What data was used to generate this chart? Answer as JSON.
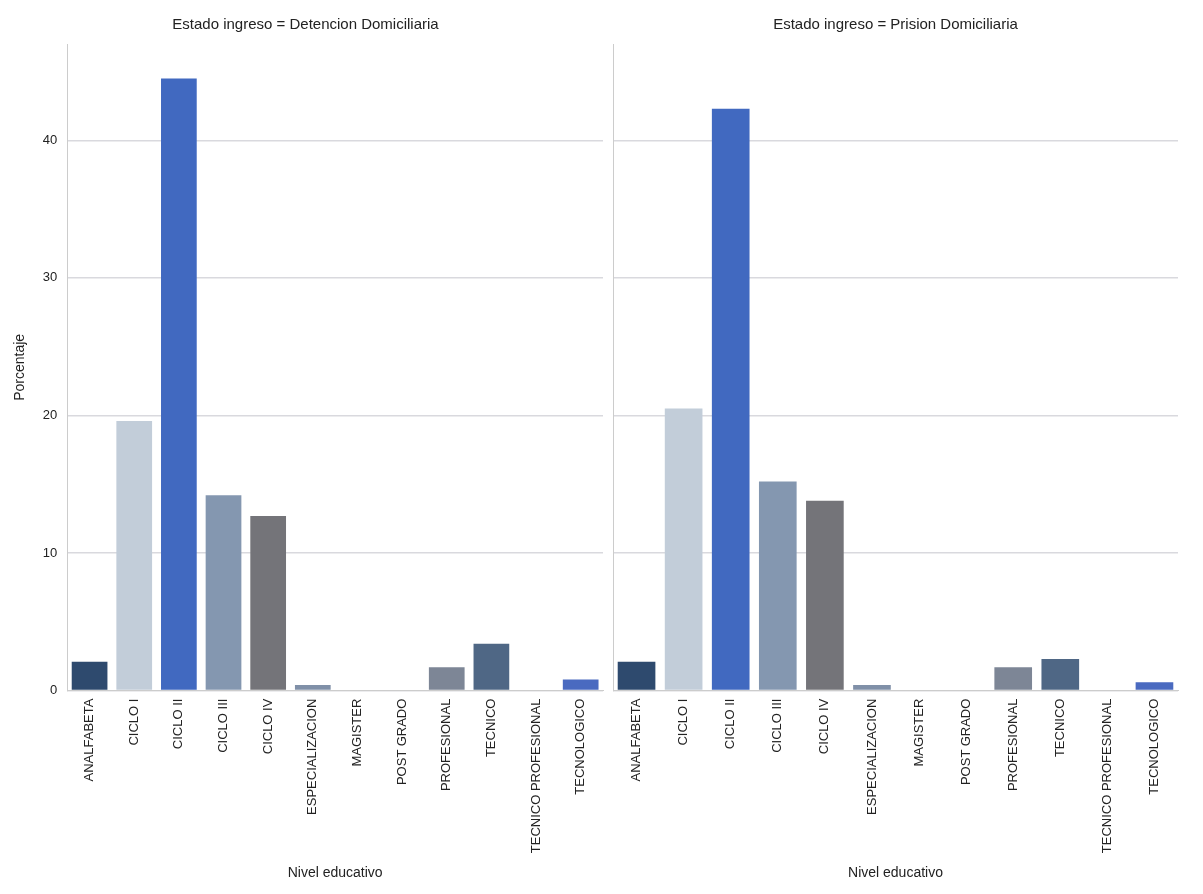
{
  "chart_data": [
    {
      "type": "bar",
      "title": "Estado ingreso = Detencion Domiciliaria",
      "xlabel": "Nivel educativo",
      "ylabel": "Porcentaje",
      "categories": [
        "ANALFABETA",
        "CICLO I",
        "CICLO II",
        "CICLO III",
        "CICLO IV",
        "ESPECIALIZACION",
        "MAGISTER",
        "POST GRADO",
        "PROFESIONAL",
        "TECNICO",
        "TECNICO PROFESIONAL",
        "TECNOLOGICO"
      ],
      "values": [
        2.1,
        19.6,
        44.5,
        14.2,
        12.7,
        0.4,
        0,
        0,
        1.7,
        3.4,
        0,
        0.8
      ],
      "colors": [
        "#2e4a6e",
        "#c2cdd9",
        "#4169c0",
        "#8497b0",
        "#747479",
        "#8090a8",
        "#5a6f8c",
        "#9aa6b8",
        "#7d8696",
        "#4f6785",
        "#6d7d95",
        "#4a6ac0"
      ],
      "ylim": [
        0,
        47
      ],
      "yticks": [
        0,
        10,
        20,
        30,
        40
      ],
      "grid": "y"
    },
    {
      "type": "bar",
      "title": "Estado ingreso = Prision Domiciliaria",
      "xlabel": "Nivel educativo",
      "categories": [
        "ANALFABETA",
        "CICLO I",
        "CICLO II",
        "CICLO III",
        "CICLO IV",
        "ESPECIALIZACION",
        "MAGISTER",
        "POST GRADO",
        "PROFESIONAL",
        "TECNICO",
        "TECNICO PROFESIONAL",
        "TECNOLOGICO"
      ],
      "values": [
        2.1,
        20.5,
        42.3,
        15.2,
        13.8,
        0.4,
        0,
        0,
        1.7,
        2.3,
        0,
        0.6
      ],
      "colors": [
        "#2e4a6e",
        "#c2cdd9",
        "#4169c0",
        "#8497b0",
        "#747479",
        "#8090a8",
        "#5a6f8c",
        "#9aa6b8",
        "#7d8696",
        "#4f6785",
        "#6d7d95",
        "#4a6ac0"
      ],
      "ylim": [
        0,
        47
      ],
      "yticks": [
        0,
        10,
        20,
        30,
        40
      ],
      "grid": "y",
      "tick_labels": "x"
    }
  ]
}
